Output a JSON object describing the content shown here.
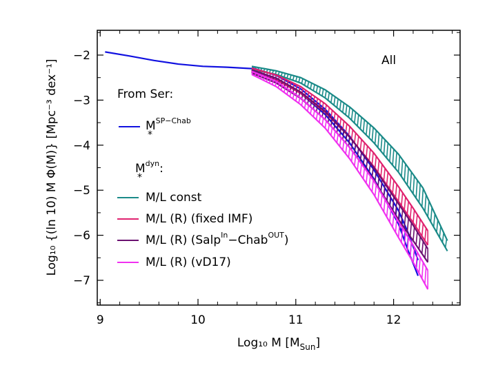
{
  "chart_data": {
    "type": "line",
    "xlabel": "Log₁₀ M [M",
    "xlabel_sub": "Sun",
    "xlabel_end": "]",
    "ylabel": "Log₁₀ {(ln 10) M Φ(M)} [Mpc⁻³ dex⁻¹]",
    "xlim": [
      8.97,
      12.68
    ],
    "ylim": [
      -7.55,
      -1.45
    ],
    "xticks": [
      9,
      10,
      11,
      12
    ],
    "xtick_labels": [
      "9",
      "10",
      "11",
      "12"
    ],
    "yticks": [
      -2,
      -3,
      -4,
      -5,
      -6,
      -7
    ],
    "ytick_labels": [
      "−2",
      "−3",
      "−4",
      "−5",
      "−6",
      "−7"
    ],
    "annotation": "All",
    "legend_group1_title": "From Ser:",
    "legend_group2_title_base": "M",
    "legend_group2_title_sup": "dyn",
    "legend_group2_title_sub": "*",
    "legend_group2_title_end": ":",
    "series": [
      {
        "name": "M*SP−Chab",
        "label_base": "M",
        "label_sup": "SP−Chab",
        "label_sub": "*",
        "color": "#1010e0",
        "style": "line",
        "x": [
          9.05,
          9.3,
          9.55,
          9.8,
          10.05,
          10.3,
          10.55
        ],
        "y": [
          -1.93,
          -2.02,
          -2.12,
          -2.2,
          -2.25,
          -2.27,
          -2.3
        ]
      },
      {
        "name": "M*SP−Chab (high mass)",
        "color": "#1010e0",
        "style": "band",
        "x": [
          10.55,
          10.8,
          11.05,
          11.3,
          11.55,
          11.8,
          12.05,
          12.15,
          12.25
        ],
        "ylow": [
          -2.35,
          -2.52,
          -2.85,
          -3.32,
          -3.95,
          -4.75,
          -5.75,
          -6.35,
          -6.9
        ],
        "yhigh": [
          -2.28,
          -2.45,
          -2.75,
          -3.2,
          -3.8,
          -4.55,
          -5.45,
          -5.95,
          -6.55
        ]
      },
      {
        "name": "M/L const",
        "label": "M/L const",
        "color": "#1a8a88",
        "style": "band",
        "x": [
          10.55,
          10.8,
          11.05,
          11.3,
          11.55,
          11.8,
          12.05,
          12.3,
          12.55
        ],
        "ylow": [
          -2.32,
          -2.43,
          -2.62,
          -2.95,
          -3.4,
          -3.95,
          -4.6,
          -5.4,
          -6.35
        ],
        "yhigh": [
          -2.25,
          -2.35,
          -2.5,
          -2.77,
          -3.15,
          -3.62,
          -4.2,
          -4.95,
          -6.12
        ]
      },
      {
        "name": "M/L (R) (fixed IMF)",
        "label": "M/L (R) (fixed IMF)",
        "color": "#e0206e",
        "style": "band",
        "x": [
          10.55,
          10.8,
          11.05,
          11.3,
          11.55,
          11.8,
          12.05,
          12.2,
          12.35
        ],
        "ylow": [
          -2.37,
          -2.55,
          -2.85,
          -3.27,
          -3.82,
          -4.48,
          -5.25,
          -5.72,
          -6.22
        ],
        "yhigh": [
          -2.29,
          -2.44,
          -2.7,
          -3.08,
          -3.58,
          -4.18,
          -4.92,
          -5.4,
          -5.9
        ]
      },
      {
        "name": "M/L (R) (SalpIn−ChabOUT)",
        "label_pre": "M/L (R) (Salp",
        "label_sup1": "In",
        "label_mid": "−Chab",
        "label_sup2": "OUT",
        "label_end": ")",
        "color": "#6a1070",
        "style": "band",
        "x": [
          10.55,
          10.8,
          11.05,
          11.3,
          11.55,
          11.8,
          12.05,
          12.2,
          12.35
        ],
        "ylow": [
          -2.4,
          -2.62,
          -2.96,
          -3.43,
          -4.05,
          -4.78,
          -5.65,
          -6.12,
          -6.6
        ],
        "yhigh": [
          -2.33,
          -2.51,
          -2.82,
          -3.25,
          -3.82,
          -4.5,
          -5.3,
          -5.78,
          -6.3
        ]
      },
      {
        "name": "M/L (R) (vD17)",
        "label": "M/L (R) (vD17)",
        "color": "#f030f0",
        "style": "band",
        "x": [
          10.55,
          10.8,
          11.05,
          11.3,
          11.55,
          11.8,
          12.05,
          12.2,
          12.35
        ],
        "ylow": [
          -2.43,
          -2.7,
          -3.1,
          -3.62,
          -4.3,
          -5.1,
          -6.05,
          -6.6,
          -7.2
        ],
        "yhigh": [
          -2.36,
          -2.58,
          -2.95,
          -3.43,
          -4.05,
          -4.8,
          -5.7,
          -6.22,
          -6.78
        ]
      }
    ]
  }
}
